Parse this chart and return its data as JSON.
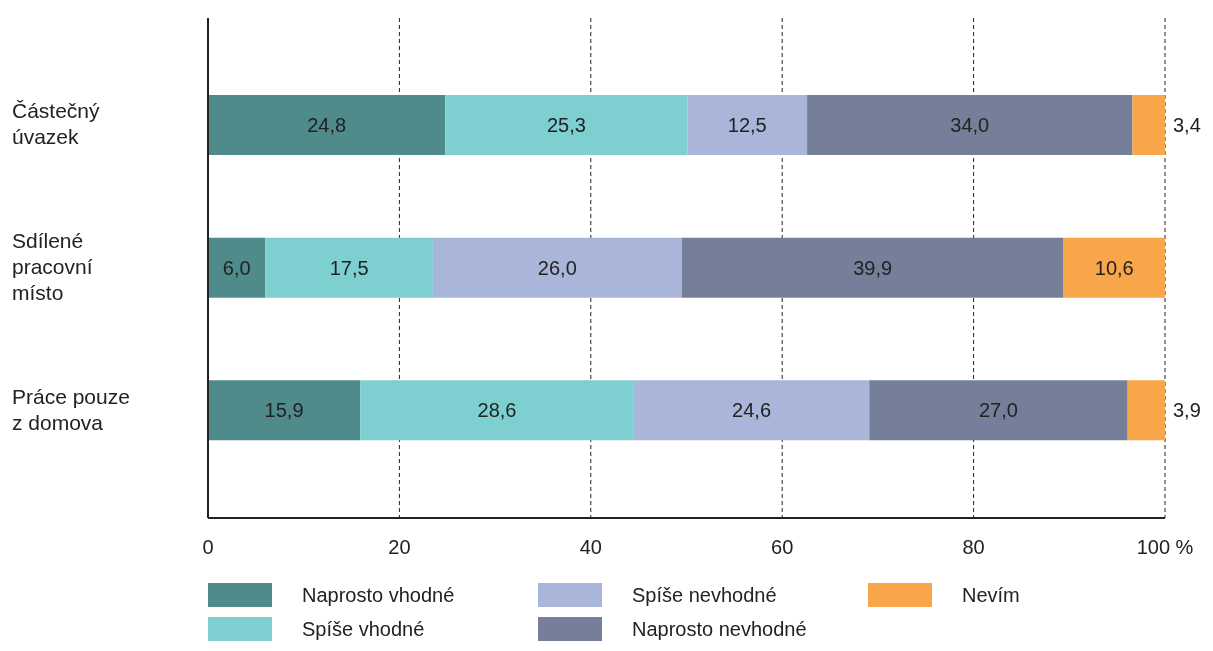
{
  "chart_data": {
    "type": "bar",
    "orientation": "horizontal",
    "stacked": true,
    "categories": [
      "Částečný úvazek",
      "Sdílené pracovní místo",
      "Práce pouze z domova"
    ],
    "series": [
      {
        "name": "Naprosto vhodné",
        "color": "#4e8b8a",
        "values": [
          24.8,
          6.0,
          15.9
        ],
        "value_labels": [
          "24,8",
          "6,0",
          "15,9"
        ]
      },
      {
        "name": "Spíše vhodné",
        "color": "#7ecfd0",
        "values": [
          25.3,
          17.5,
          28.6
        ],
        "value_labels": [
          "25,3",
          "17,5",
          "28,6"
        ]
      },
      {
        "name": "Spíše nevhodné",
        "color": "#a9b6da",
        "values": [
          12.5,
          26.0,
          24.6
        ],
        "value_labels": [
          "12,5",
          "26,0",
          "24,6"
        ]
      },
      {
        "name": "Naprosto nevhodné",
        "color": "#757f9a",
        "values": [
          34.0,
          39.9,
          27.0
        ],
        "value_labels": [
          "34,0",
          "39,9",
          "27,0"
        ]
      },
      {
        "name": "Nevím",
        "color": "#f9a64a",
        "values": [
          3.4,
          10.6,
          3.9
        ],
        "value_labels": [
          "3,4",
          "10,6",
          "3,9"
        ]
      }
    ],
    "xlim": [
      0,
      100
    ],
    "xticks": [
      0,
      20,
      40,
      60,
      80,
      {
        "value": 100,
        "label": "100 %"
      }
    ],
    "grid": "x",
    "legend": "bottom"
  }
}
